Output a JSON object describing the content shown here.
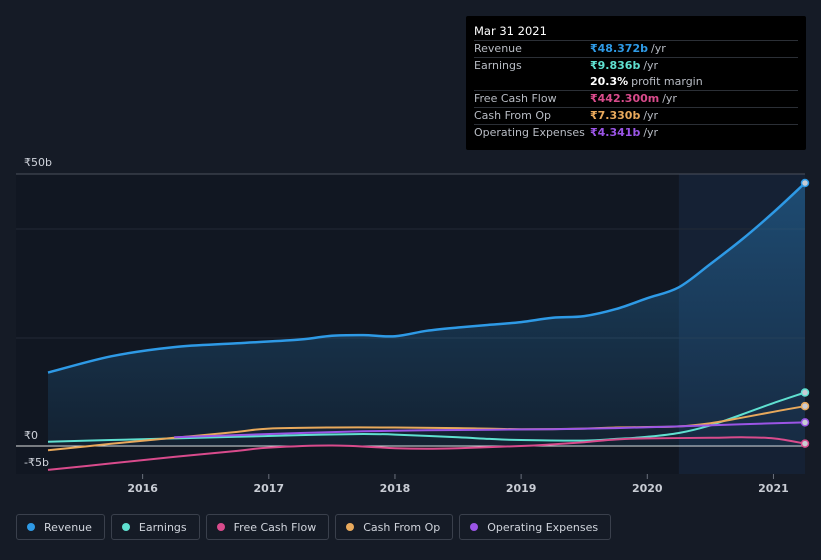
{
  "tooltip": {
    "date": "Mar 31 2021",
    "rows": [
      {
        "label": "Revenue",
        "value": "₹48.372b",
        "unit": "/yr",
        "color": "#2e9ae6"
      },
      {
        "label": "Earnings",
        "value": "₹9.836b",
        "unit": "/yr",
        "color": "#5fe0d0"
      },
      {
        "label": "",
        "value": "20.3%",
        "unit": "profit margin",
        "color": "#ffffff"
      },
      {
        "label": "Free Cash Flow",
        "value": "₹442.300m",
        "unit": "/yr",
        "color": "#d94b8c"
      },
      {
        "label": "Cash From Op",
        "value": "₹7.330b",
        "unit": "/yr",
        "color": "#e8a95c"
      },
      {
        "label": "Operating Expenses",
        "value": "₹4.341b",
        "unit": "/yr",
        "color": "#9b55e6"
      }
    ]
  },
  "legend": [
    {
      "label": "Revenue",
      "color": "#2e9ae6"
    },
    {
      "label": "Earnings",
      "color": "#5fe0d0"
    },
    {
      "label": "Free Cash Flow",
      "color": "#d94b8c"
    },
    {
      "label": "Cash From Op",
      "color": "#e8a95c"
    },
    {
      "label": "Operating Expenses",
      "color": "#9b55e6"
    }
  ],
  "chart_data": {
    "type": "line",
    "x_ticks": [
      "2016",
      "2017",
      "2018",
      "2019",
      "2020",
      "2021"
    ],
    "y_labels": {
      "top": "₹50b",
      "zero": "₹0",
      "bottom": "-₹5b"
    },
    "ylim": [
      -5,
      50
    ],
    "xlim": [
      2015.25,
      2021.25
    ],
    "highlight_start": 2020.25,
    "series": [
      {
        "name": "Revenue",
        "color": "#2e9ae6",
        "fill": true,
        "x": [
          2015.25,
          2015.75,
          2016.25,
          2016.75,
          2017.25,
          2017.5,
          2017.75,
          2018.0,
          2018.25,
          2018.5,
          2018.75,
          2019.0,
          2019.25,
          2019.5,
          2019.75,
          2020.0,
          2020.25,
          2020.5,
          2020.75,
          2021.0,
          2021.25
        ],
        "y": [
          13.5,
          16.5,
          18.2,
          18.9,
          19.6,
          20.3,
          20.4,
          20.2,
          21.2,
          21.8,
          22.3,
          22.8,
          23.6,
          23.9,
          25.2,
          27.2,
          29.2,
          33.5,
          38.0,
          43.0,
          48.4
        ]
      },
      {
        "name": "Earnings",
        "color": "#5fe0d0",
        "fill": false,
        "x": [
          2015.25,
          2015.75,
          2016.25,
          2016.75,
          2017.25,
          2017.75,
          2018.0,
          2018.5,
          2018.75,
          2019.0,
          2019.5,
          2019.75,
          2020.0,
          2020.25,
          2020.5,
          2020.75,
          2021.0,
          2021.25
        ],
        "y": [
          0.8,
          1.1,
          1.4,
          1.7,
          2.0,
          2.2,
          2.1,
          1.6,
          1.3,
          1.1,
          1.0,
          1.3,
          1.7,
          2.4,
          3.8,
          5.8,
          7.9,
          9.84
        ]
      },
      {
        "name": "Free Cash Flow",
        "color": "#d94b8c",
        "fill": false,
        "x": [
          2015.25,
          2015.75,
          2016.25,
          2016.75,
          2017.0,
          2017.5,
          2018.0,
          2018.25,
          2018.5,
          2019.0,
          2019.25,
          2019.5,
          2019.75,
          2020.0,
          2020.5,
          2020.75,
          2021.0,
          2021.25
        ],
        "y": [
          -4.4,
          -3.2,
          -2.0,
          -0.9,
          -0.3,
          0.1,
          -0.4,
          -0.5,
          -0.4,
          0.0,
          0.3,
          0.7,
          1.2,
          1.4,
          1.5,
          1.6,
          1.4,
          0.44
        ]
      },
      {
        "name": "Cash From Op",
        "color": "#e8a95c",
        "fill": false,
        "x": [
          2015.25,
          2015.75,
          2016.25,
          2016.75,
          2017.0,
          2017.5,
          2018.0,
          2018.5,
          2019.0,
          2019.5,
          2019.75,
          2020.0,
          2020.25,
          2020.5,
          2020.75,
          2021.0,
          2021.25
        ],
        "y": [
          -0.8,
          0.4,
          1.5,
          2.6,
          3.2,
          3.4,
          3.4,
          3.3,
          3.1,
          3.2,
          3.4,
          3.5,
          3.6,
          4.2,
          5.2,
          6.3,
          7.33
        ]
      },
      {
        "name": "Operating Expenses",
        "color": "#9b55e6",
        "fill": false,
        "x": [
          2016.25,
          2016.75,
          2017.25,
          2017.75,
          2018.25,
          2018.75,
          2019.25,
          2019.75,
          2020.25,
          2020.75,
          2021.25
        ],
        "y": [
          1.6,
          2.0,
          2.4,
          2.7,
          2.9,
          3.0,
          3.1,
          3.3,
          3.6,
          4.0,
          4.34
        ]
      }
    ]
  }
}
